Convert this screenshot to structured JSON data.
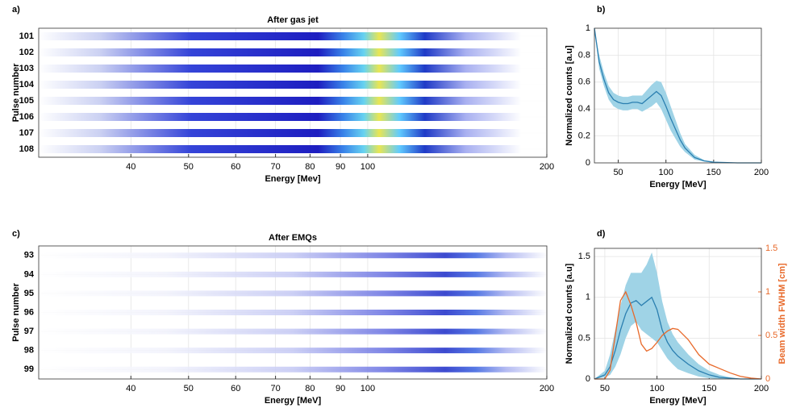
{
  "chart_data": [
    {
      "type": "spectrum",
      "label": "a)",
      "title": "After gas jet",
      "xlabel": "Energy [Mev]",
      "ylabel": "Pulse number",
      "categories": [
        "101",
        "102",
        "103",
        "104",
        "105",
        "106",
        "107",
        "108"
      ],
      "xscale": "log",
      "xlim": [
        28,
        200
      ],
      "xticks": [
        40,
        50,
        60,
        70,
        80,
        90,
        100,
        200
      ],
      "grid": true
    },
    {
      "type": "line",
      "label": "b)",
      "xlabel": "Energy [MeV]",
      "ylabel": "Normalized counts [a.u]",
      "x": [
        25,
        30,
        35,
        40,
        45,
        50,
        55,
        60,
        65,
        70,
        75,
        80,
        85,
        90,
        95,
        100,
        105,
        110,
        115,
        120,
        130,
        140,
        150,
        175,
        200
      ],
      "xlim": [
        25,
        200
      ],
      "ylim": [
        0,
        1
      ],
      "xticks": [
        50,
        100,
        150,
        200
      ],
      "yticks": [
        0,
        0.2,
        0.4,
        0.6,
        0.8,
        1
      ],
      "grid": true,
      "series": [
        {
          "color": "#2b7fb0",
          "band_color": "#9fd3e6",
          "values": [
            1.0,
            0.75,
            0.62,
            0.52,
            0.47,
            0.45,
            0.44,
            0.44,
            0.45,
            0.45,
            0.44,
            0.47,
            0.5,
            0.53,
            0.5,
            0.42,
            0.33,
            0.25,
            0.17,
            0.11,
            0.04,
            0.015,
            0.005,
            0,
            0
          ],
          "upper": [
            1.0,
            0.8,
            0.67,
            0.57,
            0.52,
            0.5,
            0.49,
            0.49,
            0.5,
            0.5,
            0.5,
            0.54,
            0.58,
            0.61,
            0.6,
            0.52,
            0.42,
            0.32,
            0.22,
            0.14,
            0.06,
            0.02,
            0.008,
            0,
            0
          ],
          "lower": [
            1.0,
            0.7,
            0.57,
            0.47,
            0.42,
            0.4,
            0.39,
            0.39,
            0.4,
            0.4,
            0.38,
            0.4,
            0.42,
            0.45,
            0.4,
            0.32,
            0.24,
            0.18,
            0.12,
            0.08,
            0.025,
            0.01,
            0.002,
            0,
            0
          ]
        }
      ]
    },
    {
      "type": "spectrum",
      "label": "c)",
      "title": "After EMQs",
      "xlabel": "Energy [MeV]",
      "ylabel": "Pulse number",
      "categories": [
        "93",
        "94",
        "95",
        "96",
        "97",
        "98",
        "99"
      ],
      "xscale": "log",
      "xlim": [
        28,
        200
      ],
      "xticks": [
        40,
        50,
        60,
        70,
        80,
        90,
        100,
        200
      ],
      "grid": true
    },
    {
      "type": "line",
      "label": "d)",
      "xlabel": "Energy [MeV]",
      "ylabel": "Normalized counts [a.u]",
      "y2label": "Beam width FWHM [cm]",
      "x": [
        40,
        50,
        55,
        60,
        65,
        70,
        75,
        80,
        85,
        90,
        95,
        100,
        105,
        110,
        115,
        120,
        130,
        140,
        150,
        160,
        170,
        180,
        190,
        200
      ],
      "xlim": [
        40,
        200
      ],
      "ylim": [
        0,
        1.6
      ],
      "y2lim": [
        0,
        1.5
      ],
      "xticks": [
        50,
        100,
        150,
        200
      ],
      "yticks": [
        0,
        0.5,
        1,
        1.5
      ],
      "y2ticks": [
        0,
        0.5,
        1,
        1.5
      ],
      "grid": true,
      "series": [
        {
          "color": "#2b7fb0",
          "band_color": "#9fd3e6",
          "values": [
            0,
            0.05,
            0.15,
            0.35,
            0.6,
            0.8,
            0.93,
            0.96,
            0.9,
            0.95,
            1.0,
            0.85,
            0.6,
            0.45,
            0.35,
            0.28,
            0.18,
            0.1,
            0.05,
            0.02,
            0.01,
            0,
            0,
            0
          ],
          "upper": [
            0,
            0.1,
            0.3,
            0.6,
            0.9,
            1.15,
            1.3,
            1.3,
            1.3,
            1.4,
            1.55,
            1.3,
            0.95,
            0.7,
            0.55,
            0.45,
            0.3,
            0.18,
            0.1,
            0.05,
            0.02,
            0,
            0,
            0
          ],
          "lower": [
            0,
            0.02,
            0.05,
            0.15,
            0.3,
            0.5,
            0.65,
            0.7,
            0.6,
            0.55,
            0.5,
            0.45,
            0.35,
            0.25,
            0.18,
            0.12,
            0.07,
            0.03,
            0.01,
            0,
            0,
            0,
            0,
            0
          ]
        },
        {
          "color": "#e8692a",
          "axis": "y2",
          "values": [
            0,
            0,
            0.1,
            0.5,
            0.9,
            1.0,
            0.85,
            0.65,
            0.4,
            0.32,
            0.35,
            0.42,
            0.5,
            0.55,
            0.58,
            0.57,
            0.45,
            0.28,
            0.17,
            0.12,
            0.07,
            0.03,
            0.01,
            0
          ]
        }
      ]
    }
  ]
}
